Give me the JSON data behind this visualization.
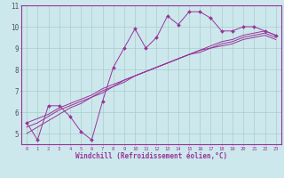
{
  "xlabel": "Windchill (Refroidissement éolien,°C)",
  "bg_color": "#cce8ec",
  "grid_color": "#aacccc",
  "line_color": "#993399",
  "border_color": "#993399",
  "x_data": [
    0,
    1,
    2,
    3,
    4,
    5,
    6,
    7,
    8,
    9,
    10,
    11,
    12,
    13,
    14,
    15,
    16,
    17,
    18,
    19,
    20,
    21,
    22,
    23
  ],
  "y_main": [
    5.5,
    4.7,
    6.3,
    6.3,
    5.8,
    5.1,
    4.7,
    6.5,
    8.1,
    9.0,
    9.9,
    9.0,
    9.5,
    10.5,
    10.1,
    10.7,
    10.7,
    10.4,
    9.8,
    9.8,
    10.0,
    10.0,
    9.8,
    9.6
  ],
  "y_line1": [
    5.5,
    5.7,
    5.9,
    6.2,
    6.4,
    6.6,
    6.8,
    7.1,
    7.3,
    7.5,
    7.7,
    7.9,
    8.1,
    8.3,
    8.5,
    8.7,
    8.9,
    9.1,
    9.3,
    9.4,
    9.6,
    9.7,
    9.8,
    9.6
  ],
  "y_line2": [
    5.3,
    5.5,
    5.8,
    6.1,
    6.3,
    6.5,
    6.7,
    7.0,
    7.2,
    7.5,
    7.7,
    7.9,
    8.1,
    8.3,
    8.5,
    8.7,
    8.9,
    9.0,
    9.2,
    9.3,
    9.5,
    9.6,
    9.7,
    9.5
  ],
  "y_line3": [
    5.0,
    5.3,
    5.6,
    5.9,
    6.2,
    6.4,
    6.7,
    6.9,
    7.2,
    7.4,
    7.7,
    7.9,
    8.1,
    8.3,
    8.5,
    8.7,
    8.8,
    9.0,
    9.1,
    9.2,
    9.4,
    9.5,
    9.6,
    9.4
  ],
  "ylim": [
    4.5,
    11.0
  ],
  "xlim": [
    -0.5,
    23.5
  ],
  "yticks": [
    5,
    6,
    7,
    8,
    9,
    10,
    11
  ],
  "xticks": [
    0,
    1,
    2,
    3,
    4,
    5,
    6,
    7,
    8,
    9,
    10,
    11,
    12,
    13,
    14,
    15,
    16,
    17,
    18,
    19,
    20,
    21,
    22,
    23
  ]
}
